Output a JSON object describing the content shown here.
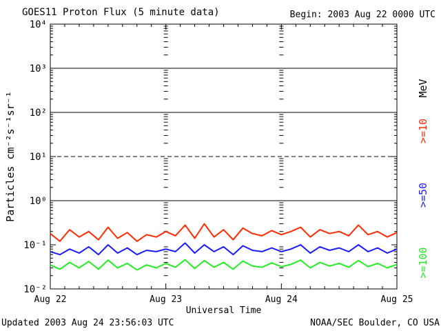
{
  "header": {
    "title": "GOES11 Proton Flux (5 minute data)",
    "begin": "Begin: 2003 Aug 22 0000 UTC"
  },
  "footer": {
    "updated": "Updated 2003 Aug 24 23:56:03 UTC",
    "credit": "NOAA/SEC Boulder, CO USA"
  },
  "chart_data": {
    "type": "line",
    "title": "GOES11 Proton Flux (5 minute data)",
    "xlabel": "Universal Time",
    "ylabel": "Particles cm⁻²s⁻¹sr⁻¹",
    "yscale": "log",
    "ylim": [
      0.01,
      10000
    ],
    "xlim": [
      "Aug 22",
      "Aug 25"
    ],
    "x_ticks": [
      "Aug 22",
      "Aug 23",
      "Aug 24",
      "Aug 25"
    ],
    "y_ticks": [
      "10⁻²",
      "10⁻¹",
      "10⁰",
      "10¹",
      "10²",
      "10³",
      "10⁴"
    ],
    "threshold_lines": [
      {
        "value": 10,
        "style": "dashed"
      },
      {
        "value": 1,
        "style": "solid"
      },
      {
        "value": 100,
        "style": "solid"
      },
      {
        "value": 1000,
        "style": "solid"
      }
    ],
    "unit_label": "MeV",
    "x_days": [
      0.0,
      0.083,
      0.167,
      0.25,
      0.333,
      0.417,
      0.5,
      0.583,
      0.667,
      0.75,
      0.833,
      0.917,
      1.0,
      1.083,
      1.167,
      1.25,
      1.333,
      1.417,
      1.5,
      1.583,
      1.667,
      1.75,
      1.833,
      1.917,
      2.0,
      2.083,
      2.167,
      2.25,
      2.333,
      2.417,
      2.5,
      2.583,
      2.667,
      2.75,
      2.833,
      2.917,
      3.0
    ],
    "series": [
      {
        "name": ">=10",
        "color": "#ff2a00",
        "values": [
          0.18,
          0.12,
          0.22,
          0.15,
          0.2,
          0.13,
          0.25,
          0.14,
          0.19,
          0.12,
          0.17,
          0.15,
          0.2,
          0.16,
          0.28,
          0.14,
          0.3,
          0.15,
          0.22,
          0.13,
          0.24,
          0.18,
          0.16,
          0.21,
          0.17,
          0.2,
          0.25,
          0.15,
          0.22,
          0.18,
          0.2,
          0.16,
          0.28,
          0.17,
          0.2,
          0.15,
          0.19
        ]
      },
      {
        "name": ">=50",
        "color": "#1a1aff",
        "values": [
          0.07,
          0.06,
          0.08,
          0.065,
          0.09,
          0.06,
          0.1,
          0.065,
          0.085,
          0.06,
          0.075,
          0.07,
          0.08,
          0.07,
          0.11,
          0.065,
          0.1,
          0.07,
          0.09,
          0.06,
          0.095,
          0.075,
          0.07,
          0.085,
          0.07,
          0.08,
          0.1,
          0.065,
          0.09,
          0.075,
          0.085,
          0.07,
          0.1,
          0.07,
          0.085,
          0.065,
          0.08
        ]
      },
      {
        "name": ">=100",
        "color": "#22ee22",
        "values": [
          0.035,
          0.028,
          0.04,
          0.03,
          0.042,
          0.028,
          0.045,
          0.03,
          0.038,
          0.027,
          0.035,
          0.03,
          0.038,
          0.031,
          0.046,
          0.029,
          0.044,
          0.031,
          0.04,
          0.028,
          0.043,
          0.033,
          0.031,
          0.039,
          0.032,
          0.036,
          0.045,
          0.03,
          0.04,
          0.033,
          0.038,
          0.031,
          0.044,
          0.032,
          0.038,
          0.03,
          0.036
        ]
      }
    ],
    "legend_position": "right"
  }
}
